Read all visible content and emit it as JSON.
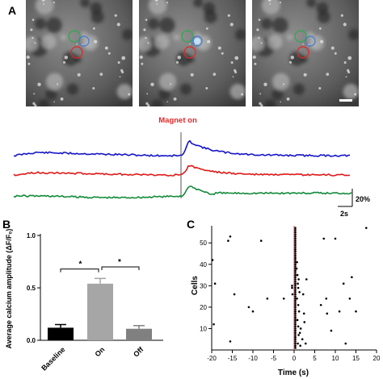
{
  "figure": {
    "panel_labels": {
      "a": "A",
      "b": "B",
      "c": "C"
    }
  },
  "panel_a": {
    "images": [
      {
        "name": "frame-baseline",
        "highlight": false
      },
      {
        "name": "frame-on",
        "highlight": true
      },
      {
        "name": "frame-off",
        "highlight": false
      }
    ],
    "roi_colors": {
      "green": "#2ea84a",
      "blue": "#3c7ad8",
      "red": "#e02828"
    },
    "traces_title": "Magnet on",
    "title_color": "#e02828",
    "trace_colors": [
      "#1414c8",
      "#e01818",
      "#128a3a"
    ],
    "scale_y": "20%",
    "scale_x": "2s"
  },
  "chart_data": [
    {
      "type": "bar",
      "panel": "B",
      "categories": [
        "Baseline",
        "On",
        "Off"
      ],
      "values": [
        0.12,
        0.54,
        0.11
      ],
      "errors": [
        0.03,
        0.05,
        0.03
      ],
      "colors": [
        "#000000",
        "#a6a6a6",
        "#808080"
      ],
      "ylabel": "Average calcium amplitude (ΔF/F₀)",
      "ylim": [
        0,
        1.0
      ],
      "yticks": [
        "0.0",
        "0.5",
        "1.0"
      ],
      "significance": [
        {
          "from": "Baseline",
          "to": "On",
          "label": "*"
        },
        {
          "from": "On",
          "to": "Off",
          "label": "*"
        }
      ]
    },
    {
      "type": "scatter",
      "panel": "C",
      "title": "",
      "xlabel": "Time (s)",
      "ylabel": "Cells",
      "xlim": [
        -20,
        20
      ],
      "ylim": [
        0,
        58
      ],
      "xticks": [
        -20,
        -15,
        -10,
        -5,
        0,
        5,
        10,
        15,
        20
      ],
      "yticks": [
        10,
        20,
        30,
        40,
        50
      ],
      "marker_line_x": 0,
      "marker_line_color": "#c85050",
      "points": [
        {
          "x": -19.5,
          "y": 12
        },
        {
          "x": -19.8,
          "y": 42
        },
        {
          "x": -19.2,
          "y": 31
        },
        {
          "x": -15.5,
          "y": 53
        },
        {
          "x": -16,
          "y": 51
        },
        {
          "x": -14.5,
          "y": 26
        },
        {
          "x": -15.5,
          "y": 4
        },
        {
          "x": -11,
          "y": 20
        },
        {
          "x": -10,
          "y": 18
        },
        {
          "x": -8,
          "y": 51
        },
        {
          "x": -6.5,
          "y": 24
        },
        {
          "x": -2.5,
          "y": 24
        },
        {
          "x": -0.4,
          "y": 26
        },
        {
          "x": -0.5,
          "y": 29
        },
        {
          "x": -0.5,
          "y": 30
        },
        {
          "x": 0.3,
          "y": 1
        },
        {
          "x": 0.3,
          "y": 2
        },
        {
          "x": 0.3,
          "y": 3
        },
        {
          "x": 0.3,
          "y": 4
        },
        {
          "x": 0.3,
          "y": 5
        },
        {
          "x": 0.3,
          "y": 6
        },
        {
          "x": 0.3,
          "y": 7
        },
        {
          "x": 0.3,
          "y": 8
        },
        {
          "x": 0.3,
          "y": 9
        },
        {
          "x": 0.3,
          "y": 10
        },
        {
          "x": 0.3,
          "y": 11
        },
        {
          "x": 0.3,
          "y": 12
        },
        {
          "x": 0.3,
          "y": 13
        },
        {
          "x": 0.3,
          "y": 14
        },
        {
          "x": 0.3,
          "y": 15
        },
        {
          "x": 0.3,
          "y": 16
        },
        {
          "x": 0.3,
          "y": 17
        },
        {
          "x": 0.3,
          "y": 18
        },
        {
          "x": 0.3,
          "y": 19
        },
        {
          "x": 0.3,
          "y": 20
        },
        {
          "x": 0.3,
          "y": 21
        },
        {
          "x": 0.3,
          "y": 22
        },
        {
          "x": 0.3,
          "y": 23
        },
        {
          "x": 0.3,
          "y": 24
        },
        {
          "x": 0.3,
          "y": 25
        },
        {
          "x": 0.3,
          "y": 26
        },
        {
          "x": 0.3,
          "y": 27
        },
        {
          "x": 0.3,
          "y": 28
        },
        {
          "x": 0.3,
          "y": 29
        },
        {
          "x": 0.3,
          "y": 30
        },
        {
          "x": 0.3,
          "y": 31
        },
        {
          "x": 0.3,
          "y": 32
        },
        {
          "x": 0.3,
          "y": 33
        },
        {
          "x": 0.3,
          "y": 34
        },
        {
          "x": 0.3,
          "y": 35
        },
        {
          "x": 0.3,
          "y": 36
        },
        {
          "x": 0.3,
          "y": 37
        },
        {
          "x": 0.3,
          "y": 38
        },
        {
          "x": 0.3,
          "y": 39
        },
        {
          "x": 0.3,
          "y": 40
        },
        {
          "x": 0.3,
          "y": 41
        },
        {
          "x": 0.3,
          "y": 42
        },
        {
          "x": 0.3,
          "y": 43
        },
        {
          "x": 0.3,
          "y": 44
        },
        {
          "x": 0.3,
          "y": 45
        },
        {
          "x": 0.3,
          "y": 46
        },
        {
          "x": 0.3,
          "y": 47
        },
        {
          "x": 0.3,
          "y": 48
        },
        {
          "x": 0.3,
          "y": 49
        },
        {
          "x": 0.3,
          "y": 50
        },
        {
          "x": 0.3,
          "y": 51
        },
        {
          "x": 0.3,
          "y": 52
        },
        {
          "x": 0.3,
          "y": 53
        },
        {
          "x": 0.3,
          "y": 54
        },
        {
          "x": 0.3,
          "y": 55
        },
        {
          "x": 0.3,
          "y": 56
        },
        {
          "x": 0.3,
          "y": 57
        },
        {
          "x": 0.9,
          "y": 3
        },
        {
          "x": 1.1,
          "y": 7
        },
        {
          "x": 1.4,
          "y": 8
        },
        {
          "x": 1.0,
          "y": 11
        },
        {
          "x": 0.8,
          "y": 14
        },
        {
          "x": 1.2,
          "y": 18
        },
        {
          "x": 1.0,
          "y": 21
        },
        {
          "x": 0.7,
          "y": 24
        },
        {
          "x": 1.3,
          "y": 27
        },
        {
          "x": 1.0,
          "y": 29
        },
        {
          "x": 0.9,
          "y": 31
        },
        {
          "x": 1.1,
          "y": 33
        },
        {
          "x": 0.8,
          "y": 35
        },
        {
          "x": 0.6,
          "y": 38
        },
        {
          "x": 0.7,
          "y": 41
        },
        {
          "x": 1.5,
          "y": 2
        },
        {
          "x": 2.0,
          "y": 5
        },
        {
          "x": 1.6,
          "y": 10
        },
        {
          "x": 2.5,
          "y": 13
        },
        {
          "x": 2.4,
          "y": 17
        },
        {
          "x": 2.2,
          "y": 26
        },
        {
          "x": 3.0,
          "y": 33
        },
        {
          "x": 2.8,
          "y": 3
        },
        {
          "x": 6.5,
          "y": 21
        },
        {
          "x": 7.2,
          "y": 52
        },
        {
          "x": 7.8,
          "y": 24
        },
        {
          "x": 8.0,
          "y": 17
        },
        {
          "x": 9.0,
          "y": 9
        },
        {
          "x": 10.0,
          "y": 52
        },
        {
          "x": 11.0,
          "y": 18
        },
        {
          "x": 12.0,
          "y": 31
        },
        {
          "x": 12.5,
          "y": 3
        },
        {
          "x": 13.5,
          "y": 24
        },
        {
          "x": 14.0,
          "y": 34
        },
        {
          "x": 15.0,
          "y": 18
        },
        {
          "x": 17.5,
          "y": 57
        }
      ]
    }
  ]
}
